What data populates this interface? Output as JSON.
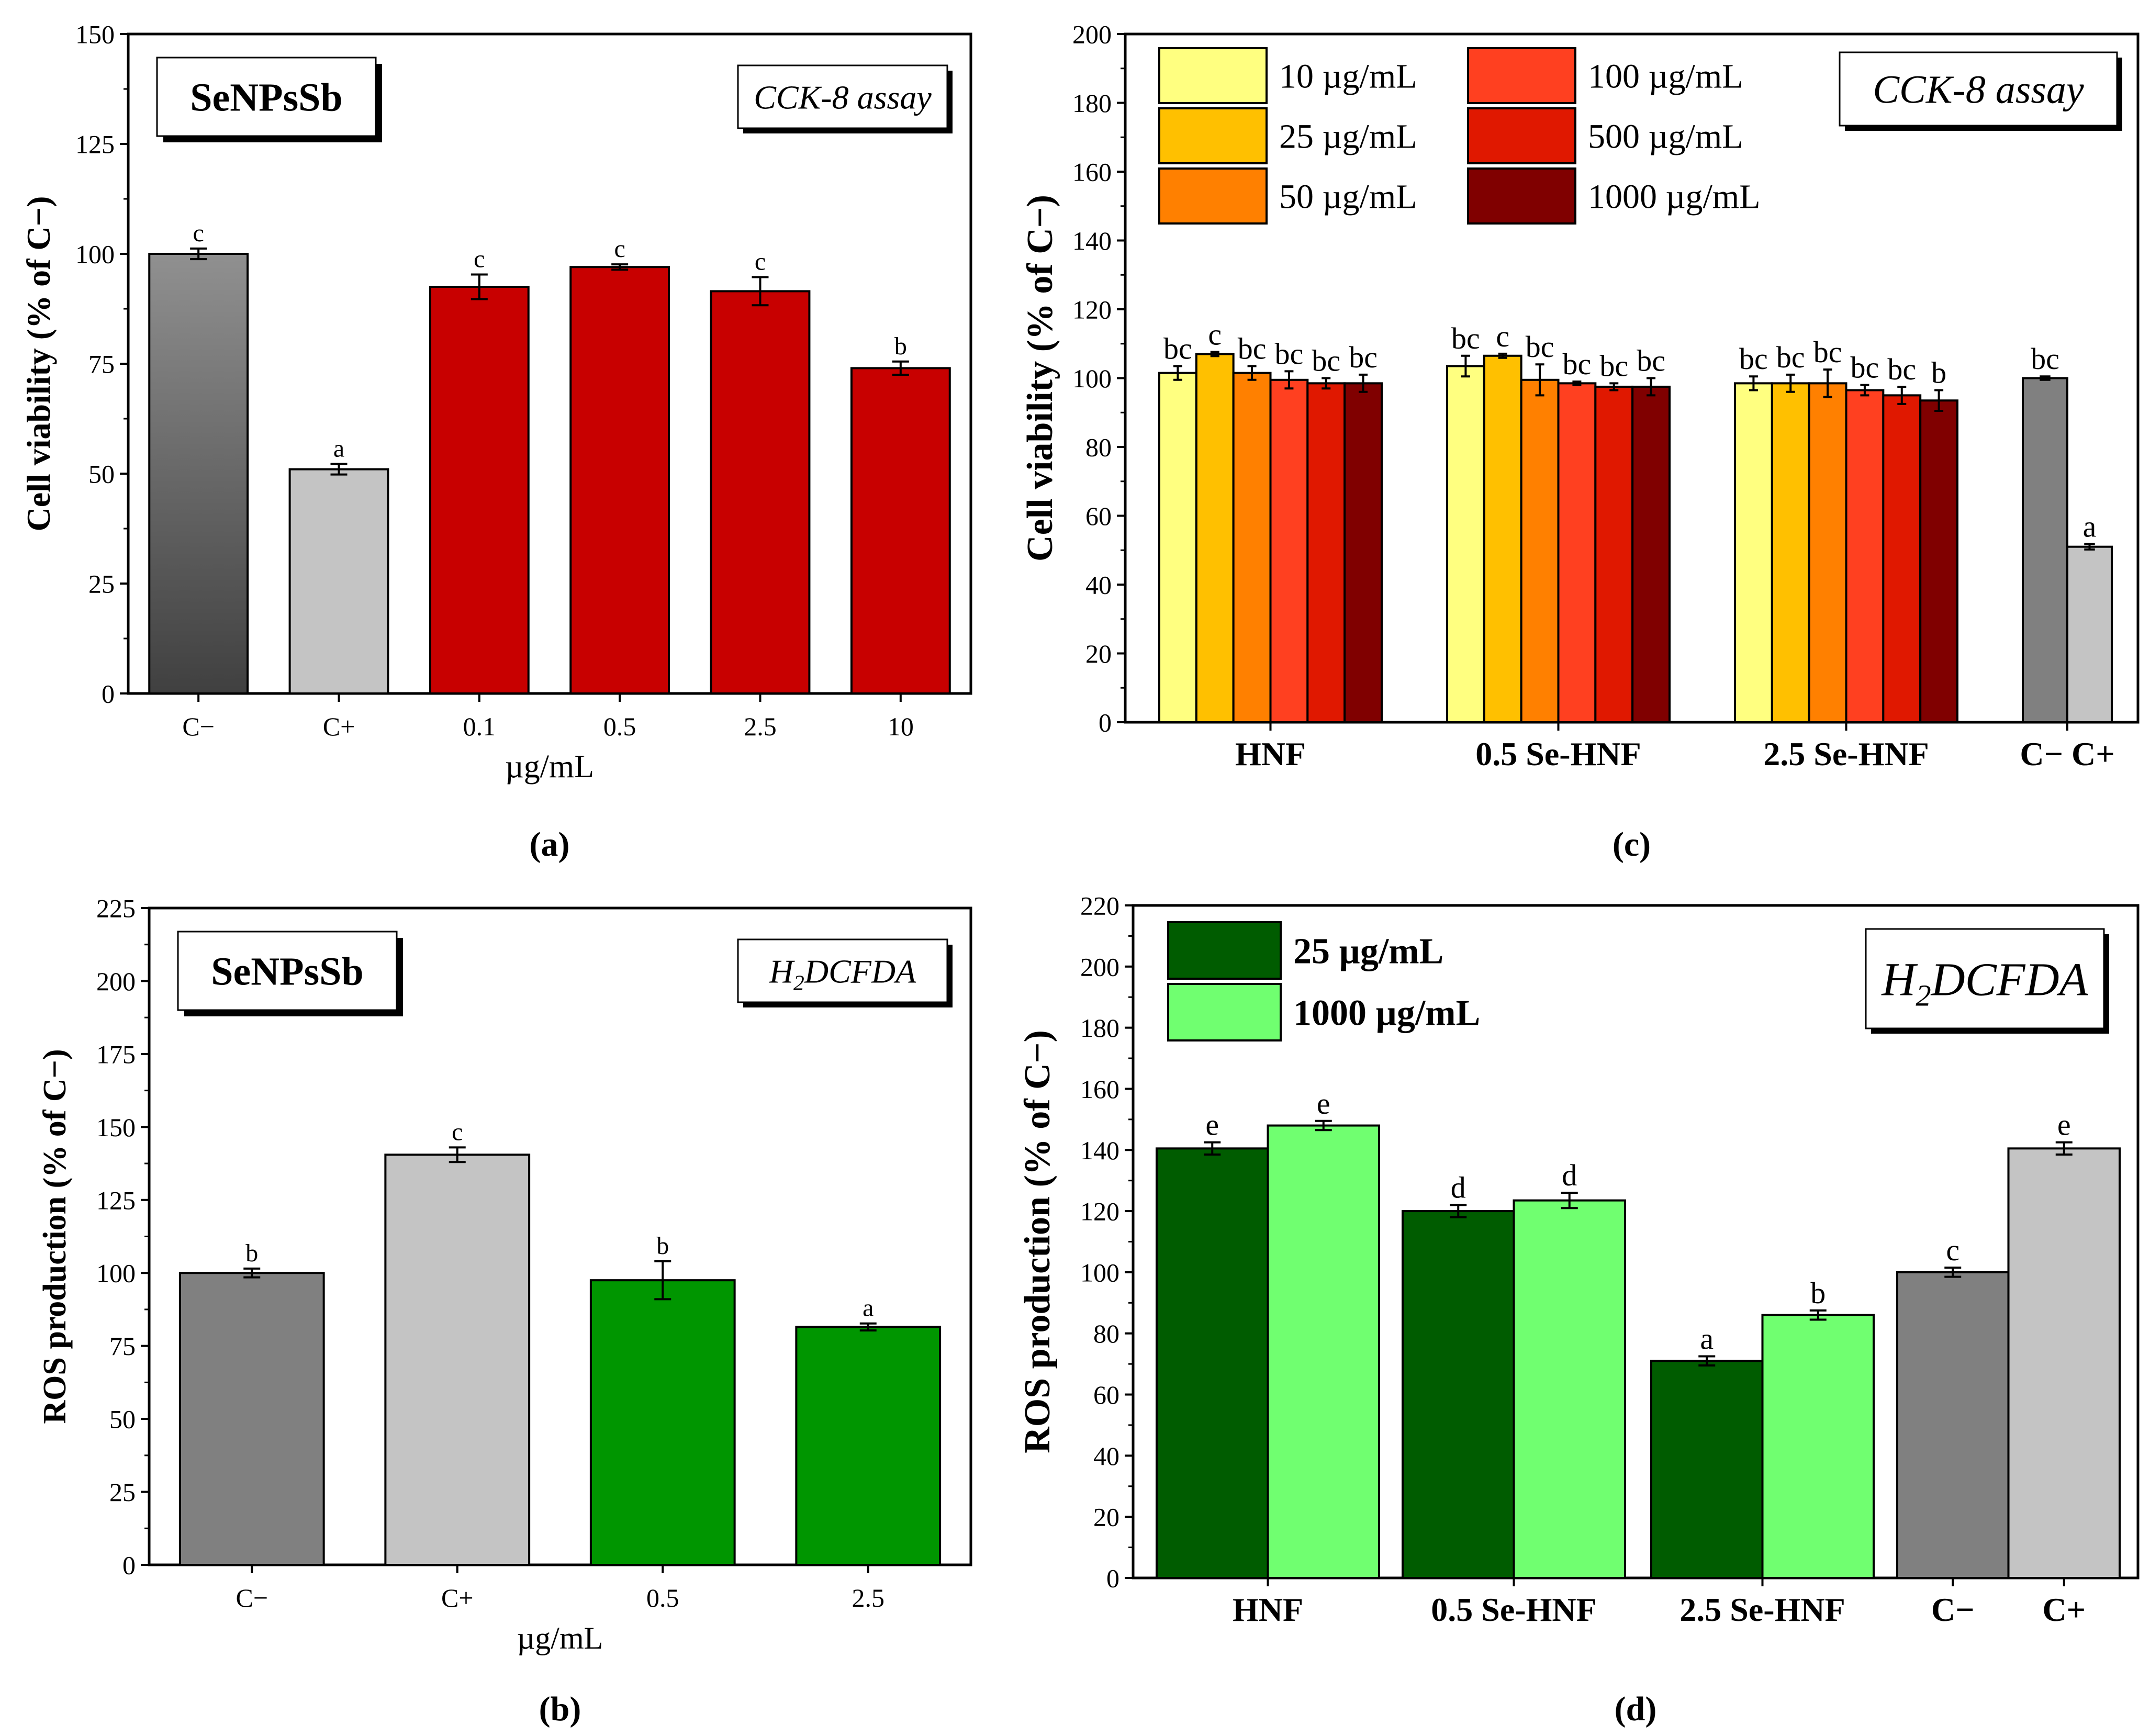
{
  "chart_data": [
    {
      "id": "a",
      "type": "bar",
      "panel_label": "(a)",
      "title": "SeNPsSb",
      "assay_label": "CCK-8 assay",
      "xlabel": "µg/mL",
      "ylabel": "Cell viability (% of C−)",
      "ylim": [
        0,
        150
      ],
      "yticks": [
        0,
        25,
        50,
        75,
        100,
        125,
        150
      ],
      "grid": false,
      "categories": [
        "C−",
        "C+",
        "0.1",
        "0.5",
        "2.5",
        "10"
      ],
      "values": [
        100,
        51,
        92.5,
        97,
        91.5,
        74
      ],
      "errors": [
        1.2,
        1.2,
        2.8,
        0.6,
        3.2,
        1.5
      ],
      "letters": [
        "c",
        "a",
        "c",
        "c",
        "c",
        "b"
      ],
      "colors": [
        "grad-dark",
        "#c4c4c4",
        "#c80000",
        "#c80000",
        "#c80000",
        "#c80000"
      ]
    },
    {
      "id": "b",
      "type": "bar",
      "panel_label": "(b)",
      "title": "SeNPsSb",
      "assay_label": "H2DCFDA",
      "xlabel": "µg/mL",
      "ylabel": "ROS production (% of C−)",
      "ylim": [
        0,
        225
      ],
      "yticks": [
        0,
        25,
        50,
        75,
        100,
        125,
        150,
        175,
        200,
        225
      ],
      "grid": false,
      "categories": [
        "C−",
        "C+",
        "0.5",
        "2.5"
      ],
      "values": [
        100,
        140.5,
        97.5,
        81.5
      ],
      "errors": [
        1.5,
        2.5,
        6.5,
        1.2
      ],
      "letters": [
        "b",
        "c",
        "b",
        "a"
      ],
      "colors": [
        "#808080",
        "#c4c4c4",
        "#009600",
        "#009600"
      ]
    },
    {
      "id": "c",
      "type": "bar",
      "panel_label": "(c)",
      "assay_label": "CCK-8 assay",
      "ylabel": "Cell viability (% of C−)",
      "ylim": [
        0,
        200
      ],
      "yticks": [
        0,
        20,
        40,
        60,
        80,
        100,
        120,
        140,
        160,
        180,
        200
      ],
      "grid": false,
      "legend_position": "top-left",
      "groups": [
        "HNF",
        "0.5 Se-HNF",
        "2.5 Se-HNF"
      ],
      "control_label": "C− C+",
      "series": [
        {
          "name": "10 µg/mL",
          "color": "#ffff80",
          "values": [
            101.5,
            103.5,
            98.5
          ],
          "errors": [
            2,
            3,
            2
          ],
          "letters": [
            "bc",
            "bc",
            "bc"
          ]
        },
        {
          "name": "25 µg/mL",
          "color": "#ffc000",
          "values": [
            107,
            106.5,
            98.5
          ],
          "errors": [
            0.6,
            0.6,
            2.5
          ],
          "letters": [
            "c",
            "c",
            "bc"
          ]
        },
        {
          "name": "50 µg/mL",
          "color": "#ff8000",
          "values": [
            101.5,
            99.5,
            98.5
          ],
          "errors": [
            2,
            4.5,
            4
          ],
          "letters": [
            "bc",
            "bc",
            "bc"
          ]
        },
        {
          "name": "100 µg/mL",
          "color": "#ff4020",
          "values": [
            99.5,
            98.5,
            96.5
          ],
          "errors": [
            2.5,
            0.5,
            1.5
          ],
          "letters": [
            "bc",
            "bc",
            "bc"
          ]
        },
        {
          "name": "500 µg/mL",
          "color": "#e01800",
          "values": [
            98.5,
            97.5,
            95
          ],
          "errors": [
            1.5,
            1,
            2.5
          ],
          "letters": [
            "bc",
            "bc",
            "bc"
          ]
        },
        {
          "name": "1000 µg/mL",
          "color": "#800000",
          "values": [
            98.5,
            97.5,
            93.5
          ],
          "errors": [
            2.5,
            2.5,
            3
          ],
          "letters": [
            "bc",
            "bc",
            "b"
          ]
        }
      ],
      "controls": [
        {
          "name": "C−",
          "color": "#808080",
          "value": 100,
          "error": 0.5,
          "letter": "bc"
        },
        {
          "name": "C+",
          "color": "#c4c4c4",
          "value": 51,
          "error": 0.8,
          "letter": "a"
        }
      ]
    },
    {
      "id": "d",
      "type": "bar",
      "panel_label": "(d)",
      "assay_label": "H2DCFDA",
      "ylabel": "ROS production (% of C−)",
      "ylim": [
        0,
        220
      ],
      "yticks": [
        0,
        20,
        40,
        60,
        80,
        100,
        120,
        140,
        160,
        180,
        200,
        220
      ],
      "grid": false,
      "legend_position": "top-left",
      "groups": [
        "HNF",
        "0.5 Se-HNF",
        "2.5 Se-HNF"
      ],
      "series": [
        {
          "name": "25 µg/mL",
          "color": "#005c00",
          "values": [
            140.5,
            120,
            71
          ],
          "errors": [
            2,
            2,
            1.5
          ],
          "letters": [
            "e",
            "d",
            "a"
          ]
        },
        {
          "name": "1000 µg/mL",
          "color": "#70ff70",
          "values": [
            148,
            123.5,
            86
          ],
          "errors": [
            1.5,
            2.5,
            1.5
          ],
          "letters": [
            "e",
            "d",
            "b"
          ]
        }
      ],
      "controls": [
        {
          "name": "C−",
          "color": "#808080",
          "value": 100,
          "error": 1.5,
          "letter": "c"
        },
        {
          "name": "C+",
          "color": "#c4c4c4",
          "value": 140.5,
          "error": 2,
          "letter": "e"
        }
      ]
    }
  ]
}
